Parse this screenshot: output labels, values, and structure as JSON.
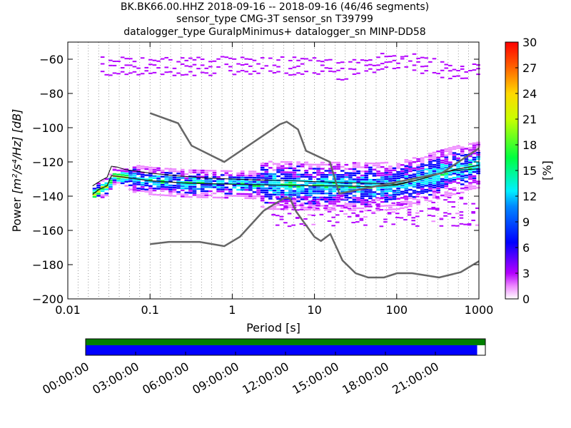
{
  "title_lines": [
    "BK.BK66.00.HHZ   2018-09-16 -- 2018-09-16  (46/46 segments)",
    "sensor_type CMG-3T sensor_sn T39799",
    "datalogger_type GuralpMinimus+ datalogger_sn MINP-DD58"
  ],
  "chart_data": {
    "type": "heatmap",
    "xlabel": "Period [s]",
    "xscale": "log",
    "xlim": [
      0.01,
      1000
    ],
    "xticks": [
      0.01,
      0.1,
      1,
      10,
      100,
      1000
    ],
    "xtick_labels": [
      "0.01",
      "0.1",
      "1",
      "10",
      "100",
      "1000"
    ],
    "ylabel_prefix": "Power ",
    "ylabel_units": "[m²/s⁴/Hz] [dB]",
    "ylim": [
      -200,
      -50
    ],
    "yticks": [
      -60,
      -80,
      -100,
      -120,
      -140,
      -160,
      -180,
      -200
    ],
    "ytick_labels": [
      "−60",
      "−80",
      "−100",
      "−120",
      "−140",
      "−160",
      "−180",
      "−200"
    ],
    "grid": "dotted-vertical",
    "colorbar": {
      "label": "[%]",
      "range": [
        0,
        30
      ],
      "ticks": [
        0,
        3,
        6,
        9,
        12,
        15,
        18,
        21,
        24,
        27,
        30
      ],
      "tick_labels": [
        "0",
        "3",
        "6",
        "9",
        "12",
        "15",
        "18",
        "21",
        "24",
        "27",
        "30"
      ]
    },
    "noise_model_high": [
      [
        0.1,
        -91.5
      ],
      [
        0.22,
        -97.4
      ],
      [
        0.32,
        -110.5
      ],
      [
        0.8,
        -120
      ],
      [
        3.8,
        -98
      ],
      [
        4.6,
        -96.5
      ],
      [
        6.3,
        -101
      ],
      [
        7.9,
        -113.5
      ],
      [
        15.4,
        -120
      ],
      [
        20,
        -138.5
      ],
      [
        354.8,
        -126.5
      ],
      [
        1000,
        -112
      ]
    ],
    "noise_model_low": [
      [
        0.1,
        -168
      ],
      [
        0.17,
        -166.7
      ],
      [
        0.4,
        -166.7
      ],
      [
        0.8,
        -169.2
      ],
      [
        1.24,
        -163.7
      ],
      [
        2.4,
        -148.6
      ],
      [
        4.3,
        -141.1
      ],
      [
        5,
        -141.1
      ],
      [
        6,
        -149
      ],
      [
        10,
        -163.8
      ],
      [
        12,
        -166.2
      ],
      [
        15.6,
        -162.1
      ],
      [
        21.9,
        -177.5
      ],
      [
        31.6,
        -185
      ],
      [
        45,
        -187.5
      ],
      [
        70,
        -187.5
      ],
      [
        101,
        -185
      ],
      [
        154,
        -185
      ],
      [
        328,
        -187.5
      ],
      [
        600,
        -184.4
      ],
      [
        1000,
        -178
      ]
    ],
    "psd_mode": [
      [
        0.02,
        -134
      ],
      [
        0.026,
        -130.5
      ],
      [
        0.03,
        -129
      ],
      [
        0.034,
        -122.5
      ],
      [
        0.04,
        -123
      ],
      [
        0.05,
        -124.5
      ],
      [
        0.1,
        -126.5
      ],
      [
        0.2,
        -128
      ],
      [
        0.5,
        -129.5
      ],
      [
        1,
        -130
      ],
      [
        2,
        -130.5
      ],
      [
        5,
        -131
      ],
      [
        10,
        -131.5
      ],
      [
        20,
        -132
      ],
      [
        50,
        -132.5
      ],
      [
        100,
        -133
      ],
      [
        200,
        -130
      ],
      [
        300,
        -127
      ],
      [
        500,
        -125
      ],
      [
        1000,
        -124
      ]
    ],
    "psd_mean": [
      [
        0.02,
        -139
      ],
      [
        0.024,
        -136
      ],
      [
        0.03,
        -134
      ],
      [
        0.034,
        -128
      ],
      [
        0.05,
        -129
      ],
      [
        0.1,
        -131
      ],
      [
        0.3,
        -132.5
      ],
      [
        1,
        -133
      ],
      [
        3,
        -133.5
      ],
      [
        10,
        -134
      ],
      [
        20,
        -134
      ],
      [
        50,
        -134.5
      ],
      [
        100,
        -133.5
      ],
      [
        200,
        -130
      ],
      [
        300,
        -127.5
      ],
      [
        500,
        -124.5
      ],
      [
        1000,
        -122
      ]
    ]
  },
  "timeline": {
    "tick_labels": [
      "00:00:00",
      "03:00:00",
      "06:00:00",
      "09:00:00",
      "12:00:00",
      "15:00:00",
      "18:00:00",
      "21:00:00"
    ],
    "coverage_fraction": 0.9795,
    "colors": {
      "top": "#007f00",
      "bottom": "#0000ff"
    }
  }
}
